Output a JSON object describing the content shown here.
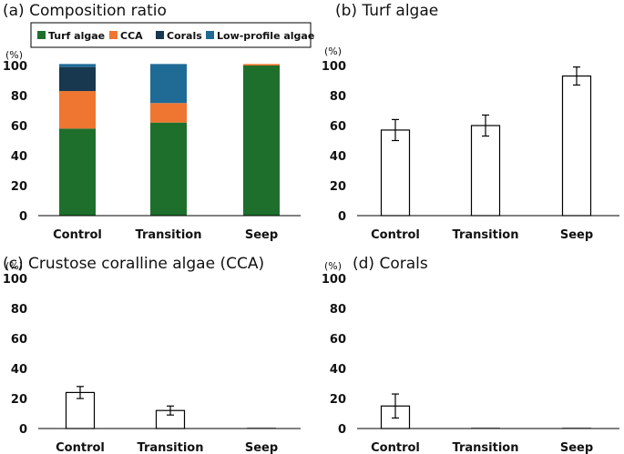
{
  "colors": {
    "turf": "#1e6f2c",
    "cca": "#ee7631",
    "corals": "#17384f",
    "lowprofile": "#1f6b96",
    "axis": "#000000"
  },
  "chart_data": [
    {
      "id": "a",
      "type": "bar",
      "stacked": true,
      "title": "(a) Composition ratio",
      "unit": "(%)",
      "categories": [
        "Control",
        "Transition",
        "Seep"
      ],
      "series": [
        {
          "name": "Turf algae",
          "color": "#1e6f2c",
          "values": [
            58,
            62,
            100
          ]
        },
        {
          "name": "CCA",
          "color": "#ee7631",
          "values": [
            25,
            13,
            1
          ]
        },
        {
          "name": "Corals",
          "color": "#17384f",
          "values": [
            16,
            0,
            0
          ]
        },
        {
          "name": "Low-profile algae",
          "color": "#1f6b96",
          "values": [
            2,
            26,
            0
          ]
        }
      ],
      "ylim": [
        0,
        100
      ],
      "yticks": [
        0,
        20,
        40,
        60,
        80,
        100
      ],
      "legend": "top",
      "grid": false
    },
    {
      "id": "b",
      "type": "bar",
      "title": "(b) Turf algae",
      "unit": "(%)",
      "categories": [
        "Control",
        "Transition",
        "Seep"
      ],
      "values": [
        57,
        60,
        93
      ],
      "errors": [
        7,
        7,
        6
      ],
      "ylim": [
        0,
        100
      ],
      "yticks": [
        0,
        20,
        40,
        60,
        80,
        100
      ],
      "grid": false
    },
    {
      "id": "c",
      "type": "bar",
      "title": "(c) Crustose coralline algae (CCA)",
      "unit": "(%)",
      "categories": [
        "Control",
        "Transition",
        "Seep"
      ],
      "values": [
        24,
        12,
        0.5
      ],
      "errors": [
        4,
        3,
        0.3
      ],
      "ylim": [
        0,
        100
      ],
      "yticks": [
        0,
        20,
        40,
        60,
        80,
        100
      ],
      "grid": false
    },
    {
      "id": "d",
      "type": "bar",
      "title": "(d) Corals",
      "unit": "(%)",
      "categories": [
        "Control",
        "Transition",
        "Seep"
      ],
      "values": [
        15,
        0,
        0
      ],
      "errors": [
        8,
        0,
        0
      ],
      "ylim": [
        0,
        100
      ],
      "yticks": [
        0,
        20,
        40,
        60,
        80,
        100
      ],
      "grid": false
    }
  ]
}
